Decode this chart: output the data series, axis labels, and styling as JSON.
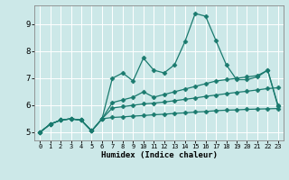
{
  "title": "",
  "xlabel": "Humidex (Indice chaleur)",
  "xlim": [
    -0.5,
    23.5
  ],
  "ylim": [
    4.7,
    9.7
  ],
  "xticks": [
    0,
    1,
    2,
    3,
    4,
    5,
    6,
    7,
    8,
    9,
    10,
    11,
    12,
    13,
    14,
    15,
    16,
    17,
    18,
    19,
    20,
    21,
    22,
    23
  ],
  "yticks": [
    5,
    6,
    7,
    8,
    9
  ],
  "bg_color": "#cce8e8",
  "grid_color": "#ffffff",
  "line_color": "#1a7a6e",
  "line1_x": [
    0,
    1,
    2,
    3,
    4,
    5,
    6,
    7,
    8,
    9,
    10,
    11,
    12,
    13,
    14,
    15,
    16,
    17,
    18,
    19,
    20,
    21,
    22,
    23
  ],
  "line1_y": [
    5.0,
    5.3,
    5.45,
    5.5,
    5.45,
    5.05,
    5.5,
    5.55,
    5.57,
    5.6,
    5.62,
    5.65,
    5.67,
    5.7,
    5.72,
    5.75,
    5.77,
    5.8,
    5.82,
    5.83,
    5.85,
    5.86,
    5.87,
    5.88
  ],
  "line2_x": [
    0,
    1,
    2,
    3,
    4,
    5,
    6,
    7,
    8,
    9,
    10,
    11,
    12,
    13,
    14,
    15,
    16,
    17,
    18,
    19,
    20,
    21,
    22,
    23
  ],
  "line2_y": [
    5.0,
    5.3,
    5.45,
    5.5,
    5.45,
    5.05,
    5.5,
    5.9,
    5.95,
    6.0,
    6.05,
    6.08,
    6.12,
    6.17,
    6.22,
    6.27,
    6.33,
    6.38,
    6.43,
    6.48,
    6.52,
    6.57,
    6.62,
    6.65
  ],
  "line3_x": [
    0,
    1,
    2,
    3,
    4,
    5,
    6,
    7,
    8,
    9,
    10,
    11,
    12,
    13,
    14,
    15,
    16,
    17,
    18,
    19,
    20,
    21,
    22,
    23
  ],
  "line3_y": [
    5.0,
    5.3,
    5.45,
    5.5,
    5.45,
    5.05,
    5.5,
    6.1,
    6.2,
    6.3,
    6.5,
    6.3,
    6.4,
    6.5,
    6.6,
    6.7,
    6.8,
    6.9,
    6.95,
    7.0,
    7.05,
    7.1,
    7.3,
    6.0
  ],
  "line4_x": [
    0,
    1,
    2,
    3,
    4,
    5,
    6,
    7,
    8,
    9,
    10,
    11,
    12,
    13,
    14,
    15,
    16,
    17,
    18,
    19,
    20,
    21,
    22,
    23
  ],
  "line4_y": [
    5.0,
    5.3,
    5.45,
    5.5,
    5.45,
    5.05,
    5.5,
    7.0,
    7.2,
    6.9,
    7.75,
    7.3,
    7.2,
    7.5,
    8.35,
    9.4,
    9.3,
    8.4,
    7.5,
    6.95,
    6.95,
    7.05,
    7.3,
    5.95
  ],
  "linewidth": 0.9,
  "marker_size": 2.5
}
